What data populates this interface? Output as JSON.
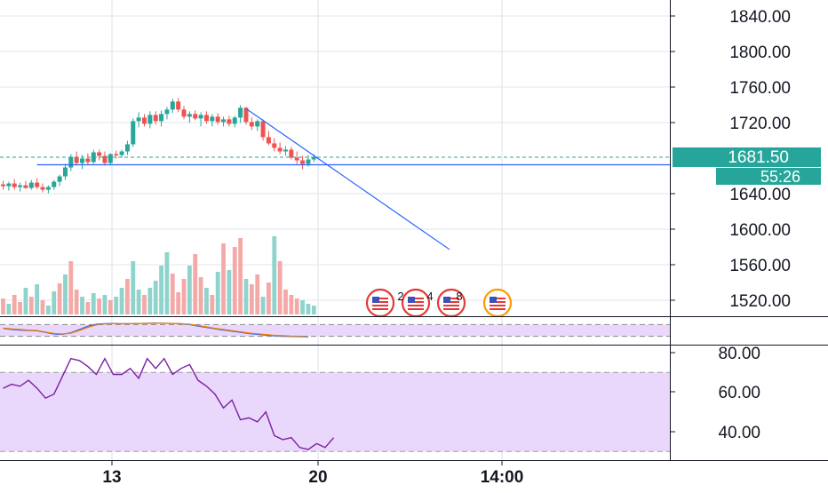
{
  "colors": {
    "up": "#26a69a",
    "down": "#ef5350",
    "vol_up": "#8fd3cc",
    "vol_down": "#f4a9a7",
    "trendline": "#2962ff",
    "grid": "#e1e5ec",
    "axis_text": "#131722",
    "badge": "#26a69a",
    "rsi_line": "#7b1fa2",
    "rsi_band": "#e9d8fb",
    "stoch_k": "#2962ff",
    "stoch_d": "#f57c00",
    "event_icon": "#e53935",
    "event_icon_alt": "#ff9800"
  },
  "price_axis": {
    "ticks": [
      "1840.00",
      "1800.00",
      "1760.00",
      "1720.00",
      "1640.00",
      "1600.00",
      "1560.00",
      "1520.00"
    ]
  },
  "rsi_axis": {
    "ticks": [
      "80.00",
      "60.00",
      "40.00"
    ]
  },
  "time_axis": {
    "ticks": [
      "13",
      "20",
      "14:00"
    ]
  },
  "badges": {
    "last_price": "1681.50",
    "countdown": "55:26"
  },
  "events": {
    "counts": [
      "2",
      "4",
      "8"
    ]
  },
  "chart_data": [
    {
      "type": "candlestick",
      "title": "",
      "ylim": [
        1510,
        1855
      ],
      "last_price": 1681.5,
      "horizontal_level": 1673,
      "trendline": {
        "from": {
          "bar": 43,
          "price": 1736
        },
        "to": {
          "bar": 79,
          "price": 1578
        }
      },
      "candles": [
        {
          "o": 1651,
          "h": 1655,
          "l": 1645,
          "c": 1649
        },
        {
          "o": 1649,
          "h": 1654,
          "l": 1644,
          "c": 1652
        },
        {
          "o": 1652,
          "h": 1657,
          "l": 1645,
          "c": 1648
        },
        {
          "o": 1648,
          "h": 1653,
          "l": 1643,
          "c": 1650
        },
        {
          "o": 1650,
          "h": 1655,
          "l": 1646,
          "c": 1647
        },
        {
          "o": 1647,
          "h": 1656,
          "l": 1645,
          "c": 1653
        },
        {
          "o": 1653,
          "h": 1658,
          "l": 1646,
          "c": 1648
        },
        {
          "o": 1648,
          "h": 1652,
          "l": 1642,
          "c": 1645
        },
        {
          "o": 1645,
          "h": 1650,
          "l": 1641,
          "c": 1648
        },
        {
          "o": 1648,
          "h": 1656,
          "l": 1645,
          "c": 1654
        },
        {
          "o": 1654,
          "h": 1662,
          "l": 1649,
          "c": 1660
        },
        {
          "o": 1660,
          "h": 1674,
          "l": 1656,
          "c": 1670
        },
        {
          "o": 1670,
          "h": 1685,
          "l": 1666,
          "c": 1682
        },
        {
          "o": 1682,
          "h": 1688,
          "l": 1672,
          "c": 1675
        },
        {
          "o": 1675,
          "h": 1684,
          "l": 1668,
          "c": 1680
        },
        {
          "o": 1680,
          "h": 1686,
          "l": 1673,
          "c": 1676
        },
        {
          "o": 1676,
          "h": 1690,
          "l": 1674,
          "c": 1687
        },
        {
          "o": 1687,
          "h": 1690,
          "l": 1678,
          "c": 1683
        },
        {
          "o": 1683,
          "h": 1688,
          "l": 1672,
          "c": 1675
        },
        {
          "o": 1675,
          "h": 1686,
          "l": 1673,
          "c": 1685
        },
        {
          "o": 1685,
          "h": 1689,
          "l": 1680,
          "c": 1684
        },
        {
          "o": 1684,
          "h": 1690,
          "l": 1681,
          "c": 1688
        },
        {
          "o": 1688,
          "h": 1700,
          "l": 1684,
          "c": 1696
        },
        {
          "o": 1696,
          "h": 1725,
          "l": 1693,
          "c": 1722
        },
        {
          "o": 1722,
          "h": 1732,
          "l": 1715,
          "c": 1726
        },
        {
          "o": 1726,
          "h": 1730,
          "l": 1716,
          "c": 1719
        },
        {
          "o": 1719,
          "h": 1733,
          "l": 1714,
          "c": 1729
        },
        {
          "o": 1729,
          "h": 1733,
          "l": 1718,
          "c": 1722
        },
        {
          "o": 1722,
          "h": 1734,
          "l": 1716,
          "c": 1730
        },
        {
          "o": 1730,
          "h": 1738,
          "l": 1724,
          "c": 1735
        },
        {
          "o": 1735,
          "h": 1747,
          "l": 1731,
          "c": 1744
        },
        {
          "o": 1744,
          "h": 1748,
          "l": 1732,
          "c": 1735
        },
        {
          "o": 1735,
          "h": 1739,
          "l": 1724,
          "c": 1727
        },
        {
          "o": 1727,
          "h": 1733,
          "l": 1720,
          "c": 1730
        },
        {
          "o": 1730,
          "h": 1734,
          "l": 1723,
          "c": 1725
        },
        {
          "o": 1725,
          "h": 1732,
          "l": 1716,
          "c": 1729
        },
        {
          "o": 1729,
          "h": 1733,
          "l": 1719,
          "c": 1722
        },
        {
          "o": 1722,
          "h": 1730,
          "l": 1716,
          "c": 1727
        },
        {
          "o": 1727,
          "h": 1731,
          "l": 1718,
          "c": 1721
        },
        {
          "o": 1721,
          "h": 1727,
          "l": 1716,
          "c": 1724
        },
        {
          "o": 1724,
          "h": 1728,
          "l": 1716,
          "c": 1719
        },
        {
          "o": 1719,
          "h": 1728,
          "l": 1715,
          "c": 1726
        },
        {
          "o": 1726,
          "h": 1740,
          "l": 1720,
          "c": 1737
        },
        {
          "o": 1737,
          "h": 1738,
          "l": 1718,
          "c": 1721
        },
        {
          "o": 1721,
          "h": 1726,
          "l": 1712,
          "c": 1716
        },
        {
          "o": 1716,
          "h": 1724,
          "l": 1711,
          "c": 1722
        },
        {
          "o": 1722,
          "h": 1724,
          "l": 1700,
          "c": 1704
        },
        {
          "o": 1704,
          "h": 1711,
          "l": 1695,
          "c": 1697
        },
        {
          "o": 1697,
          "h": 1703,
          "l": 1688,
          "c": 1692
        },
        {
          "o": 1692,
          "h": 1698,
          "l": 1685,
          "c": 1688
        },
        {
          "o": 1688,
          "h": 1694,
          "l": 1683,
          "c": 1690
        },
        {
          "o": 1690,
          "h": 1693,
          "l": 1679,
          "c": 1681
        },
        {
          "o": 1681,
          "h": 1688,
          "l": 1674,
          "c": 1678
        },
        {
          "o": 1678,
          "h": 1683,
          "l": 1668,
          "c": 1674
        },
        {
          "o": 1674,
          "h": 1684,
          "l": 1671,
          "c": 1679
        },
        {
          "o": 1679,
          "h": 1685,
          "l": 1676,
          "c": 1681.5
        }
      ],
      "volume": [
        {
          "v": 18,
          "up": false
        },
        {
          "v": 12,
          "up": true
        },
        {
          "v": 22,
          "up": false
        },
        {
          "v": 14,
          "up": false
        },
        {
          "v": 30,
          "up": true
        },
        {
          "v": 20,
          "up": false
        },
        {
          "v": 34,
          "up": true
        },
        {
          "v": 16,
          "up": false
        },
        {
          "v": 10,
          "up": true
        },
        {
          "v": 26,
          "up": true
        },
        {
          "v": 35,
          "up": false
        },
        {
          "v": 45,
          "up": true
        },
        {
          "v": 60,
          "up": false
        },
        {
          "v": 28,
          "up": false
        },
        {
          "v": 20,
          "up": true
        },
        {
          "v": 14,
          "up": false
        },
        {
          "v": 24,
          "up": true
        },
        {
          "v": 18,
          "up": false
        },
        {
          "v": 22,
          "up": true
        },
        {
          "v": 16,
          "up": false
        },
        {
          "v": 20,
          "up": true
        },
        {
          "v": 30,
          "up": true
        },
        {
          "v": 40,
          "up": false
        },
        {
          "v": 60,
          "up": true
        },
        {
          "v": 28,
          "up": true
        },
        {
          "v": 22,
          "up": false
        },
        {
          "v": 30,
          "up": true
        },
        {
          "v": 38,
          "up": true
        },
        {
          "v": 55,
          "up": true
        },
        {
          "v": 70,
          "up": true
        },
        {
          "v": 46,
          "up": false
        },
        {
          "v": 25,
          "up": false
        },
        {
          "v": 40,
          "up": false
        },
        {
          "v": 55,
          "up": true
        },
        {
          "v": 68,
          "up": false
        },
        {
          "v": 42,
          "up": false
        },
        {
          "v": 30,
          "up": true
        },
        {
          "v": 22,
          "up": false
        },
        {
          "v": 48,
          "up": true
        },
        {
          "v": 80,
          "up": false
        },
        {
          "v": 50,
          "up": true
        },
        {
          "v": 76,
          "up": false
        },
        {
          "v": 86,
          "up": false
        },
        {
          "v": 40,
          "up": true
        },
        {
          "v": 34,
          "up": false
        },
        {
          "v": 45,
          "up": false
        },
        {
          "v": 20,
          "up": true
        },
        {
          "v": 36,
          "up": false
        },
        {
          "v": 88,
          "up": true
        },
        {
          "v": 60,
          "up": false
        },
        {
          "v": 28,
          "up": false
        },
        {
          "v": 22,
          "up": false
        },
        {
          "v": 18,
          "up": false
        },
        {
          "v": 16,
          "up": true
        },
        {
          "v": 12,
          "up": true
        },
        {
          "v": 10,
          "up": true
        }
      ]
    },
    {
      "type": "line",
      "title": "",
      "ylim": [
        0,
        100
      ],
      "bands": [
        20,
        80
      ],
      "series": [
        {
          "values": [
            60,
            55,
            52,
            50,
            48,
            40,
            32,
            30,
            38,
            55,
            72,
            82,
            85,
            86,
            84,
            85,
            86,
            87,
            88,
            87,
            86,
            84,
            80,
            72,
            65,
            58,
            52,
            46,
            40,
            34,
            30,
            26,
            22,
            20,
            19,
            18,
            17
          ]
        },
        {
          "values": [
            62,
            58,
            55,
            52,
            50,
            42,
            35,
            32,
            36,
            50,
            66,
            78,
            83,
            85,
            85,
            85,
            86,
            86,
            87,
            87,
            86,
            85,
            82,
            75,
            68,
            61,
            55,
            49,
            43,
            37,
            33,
            29,
            25,
            23,
            21,
            20,
            19
          ]
        }
      ]
    },
    {
      "type": "line",
      "title": "",
      "ylim": [
        28,
        82
      ],
      "band": [
        30,
        70
      ],
      "series": [
        {
          "values": [
            62,
            64,
            63,
            66,
            62,
            57,
            59,
            68,
            77,
            76,
            73,
            69,
            77,
            69,
            69,
            72,
            67,
            77,
            72,
            77,
            69,
            72,
            74,
            66,
            63,
            59,
            52,
            56,
            46,
            47,
            45,
            50,
            38,
            36,
            37,
            32,
            31,
            34,
            32,
            37
          ]
        }
      ]
    }
  ]
}
